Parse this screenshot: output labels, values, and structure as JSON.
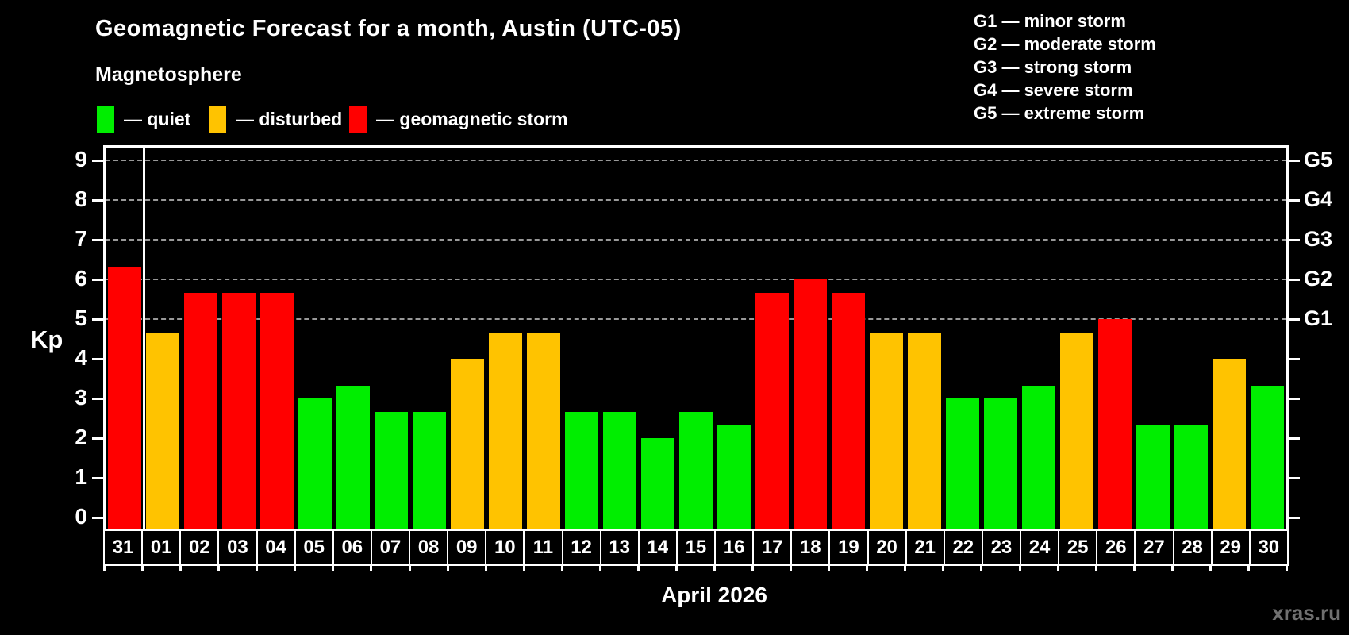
{
  "title": "Geomagnetic Forecast for a month, Austin (UTC-05)",
  "subtitle": "Magnetosphere",
  "legend": {
    "quiet_label": "— quiet",
    "disturbed_label": "— disturbed",
    "storm_label": "— geomagnetic storm"
  },
  "g_legend": [
    "G1 — minor storm",
    "G2 — moderate storm",
    "G3 — strong storm",
    "G4 — severe storm",
    "G5 — extreme storm"
  ],
  "watermark": "xras.ru",
  "colors": {
    "quiet": "#00ee00",
    "disturbed": "#ffc300",
    "storm": "#ff0000",
    "gridline": "#999999",
    "frame": "#ffffff",
    "background": "#000000",
    "watermark": "#707070"
  },
  "chart_data": {
    "type": "bar",
    "title": "Geomagnetic Forecast for a month, Austin (UTC-05)",
    "xlabel": "April 2026",
    "ylabel": "Kp",
    "ylim": [
      0,
      9.7
    ],
    "y_ticks": [
      0,
      1,
      2,
      3,
      4,
      5,
      6,
      7,
      8,
      9
    ],
    "gridlines_at": [
      5,
      6,
      7,
      8,
      9
    ],
    "grid_style": "dashed",
    "legend_position": "top-left",
    "right_axis_labels": {
      "5": "G1",
      "6": "G2",
      "7": "G3",
      "8": "G4",
      "9": "G5"
    },
    "categories": [
      "31",
      "01",
      "02",
      "03",
      "04",
      "05",
      "06",
      "07",
      "08",
      "09",
      "10",
      "11",
      "12",
      "13",
      "14",
      "15",
      "16",
      "17",
      "18",
      "19",
      "20",
      "21",
      "22",
      "23",
      "24",
      "25",
      "26",
      "27",
      "28",
      "29",
      "30"
    ],
    "values": [
      6.33,
      4.67,
      5.67,
      5.67,
      5.67,
      3.0,
      3.33,
      2.67,
      2.67,
      4.0,
      4.67,
      4.67,
      2.67,
      2.67,
      2.0,
      2.67,
      2.33,
      5.67,
      6.0,
      5.67,
      4.67,
      4.67,
      3.0,
      3.0,
      3.33,
      4.67,
      5.0,
      2.33,
      2.33,
      4.0,
      3.33
    ],
    "levels": [
      "storm",
      "disturbed",
      "storm",
      "storm",
      "storm",
      "quiet",
      "quiet",
      "quiet",
      "quiet",
      "disturbed",
      "disturbed",
      "disturbed",
      "quiet",
      "quiet",
      "quiet",
      "quiet",
      "quiet",
      "storm",
      "storm",
      "storm",
      "disturbed",
      "disturbed",
      "quiet",
      "quiet",
      "quiet",
      "disturbed",
      "storm",
      "quiet",
      "quiet",
      "disturbed",
      "quiet"
    ],
    "month_separator_after_index": 0
  }
}
